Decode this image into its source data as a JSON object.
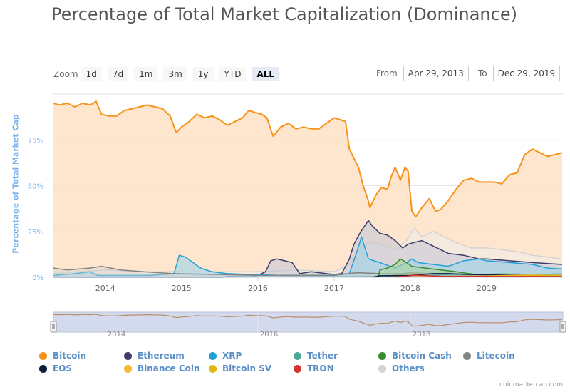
{
  "title": "Percentage of Total Market Capitalization (Dominance)",
  "zoom": {
    "label": "Zoom",
    "buttons": [
      "1d",
      "7d",
      "1m",
      "3m",
      "1y",
      "YTD",
      "ALL"
    ],
    "active": "ALL"
  },
  "range": {
    "from_label": "From",
    "from_value": "Apr 29, 2013",
    "to_label": "To",
    "to_value": "Dec 29, 2019"
  },
  "credit": "coinmarketcap.com",
  "chart_data": {
    "type": "area",
    "ylabel": "Percentage of Total Market Cap",
    "ylim": [
      0,
      100
    ],
    "xlim": [
      2013.32,
      2020.0
    ],
    "y_ticks": [
      {
        "value": 0,
        "label": "0%"
      },
      {
        "value": 25,
        "label": "25%"
      },
      {
        "value": 50,
        "label": "50%"
      },
      {
        "value": 75,
        "label": "75%"
      }
    ],
    "x_ticks": [
      {
        "value": 2014,
        "label": "2014"
      },
      {
        "value": 2015,
        "label": "2015"
      },
      {
        "value": 2016,
        "label": "2016"
      },
      {
        "value": 2017,
        "label": "2017"
      },
      {
        "value": 2018,
        "label": "2018"
      },
      {
        "value": 2019,
        "label": "2019"
      }
    ],
    "navigator_ticks": [
      {
        "value": 2014,
        "label": "2014"
      },
      {
        "value": 2016,
        "label": "2016"
      },
      {
        "value": 2018,
        "label": "2018"
      }
    ],
    "legend_placement": "bottom",
    "series": [
      {
        "name": "Bitcoin",
        "color": "#f7931a",
        "fill": "#fde0c0",
        "fill_opacity": 0.8,
        "points": [
          [
            2013.32,
            95
          ],
          [
            2013.4,
            94
          ],
          [
            2013.5,
            95
          ],
          [
            2013.6,
            93
          ],
          [
            2013.7,
            95
          ],
          [
            2013.8,
            94
          ],
          [
            2013.88,
            96
          ],
          [
            2013.95,
            89
          ],
          [
            2014.05,
            88
          ],
          [
            2014.15,
            88
          ],
          [
            2014.25,
            91
          ],
          [
            2014.35,
            92
          ],
          [
            2014.45,
            93
          ],
          [
            2014.55,
            94
          ],
          [
            2014.65,
            93
          ],
          [
            2014.75,
            92
          ],
          [
            2014.85,
            88
          ],
          [
            2014.93,
            79
          ],
          [
            2015.0,
            82
          ],
          [
            2015.1,
            85
          ],
          [
            2015.2,
            89
          ],
          [
            2015.3,
            87
          ],
          [
            2015.4,
            88
          ],
          [
            2015.5,
            86
          ],
          [
            2015.6,
            83
          ],
          [
            2015.7,
            85
          ],
          [
            2015.8,
            87
          ],
          [
            2015.88,
            91
          ],
          [
            2015.96,
            90
          ],
          [
            2016.05,
            89
          ],
          [
            2016.12,
            87
          ],
          [
            2016.2,
            77
          ],
          [
            2016.3,
            82
          ],
          [
            2016.4,
            84
          ],
          [
            2016.5,
            81
          ],
          [
            2016.6,
            82
          ],
          [
            2016.7,
            81
          ],
          [
            2016.8,
            81
          ],
          [
            2016.9,
            84
          ],
          [
            2017.0,
            87
          ],
          [
            2017.08,
            86
          ],
          [
            2017.15,
            85
          ],
          [
            2017.2,
            70
          ],
          [
            2017.26,
            65
          ],
          [
            2017.32,
            60
          ],
          [
            2017.38,
            50
          ],
          [
            2017.44,
            43
          ],
          [
            2017.47,
            38
          ],
          [
            2017.55,
            45
          ],
          [
            2017.62,
            49
          ],
          [
            2017.7,
            48
          ],
          [
            2017.75,
            55
          ],
          [
            2017.8,
            60
          ],
          [
            2017.87,
            53
          ],
          [
            2017.93,
            60
          ],
          [
            2017.97,
            58
          ],
          [
            2018.02,
            36
          ],
          [
            2018.07,
            33
          ],
          [
            2018.15,
            38
          ],
          [
            2018.25,
            43
          ],
          [
            2018.33,
            36
          ],
          [
            2018.4,
            37
          ],
          [
            2018.5,
            42
          ],
          [
            2018.6,
            48
          ],
          [
            2018.7,
            53
          ],
          [
            2018.8,
            54
          ],
          [
            2018.9,
            52
          ],
          [
            2019.0,
            52
          ],
          [
            2019.1,
            52
          ],
          [
            2019.2,
            51
          ],
          [
            2019.3,
            56
          ],
          [
            2019.4,
            57
          ],
          [
            2019.5,
            67
          ],
          [
            2019.6,
            70
          ],
          [
            2019.7,
            68
          ],
          [
            2019.8,
            66
          ],
          [
            2019.9,
            67
          ],
          [
            2019.99,
            68
          ]
        ]
      },
      {
        "name": "Others",
        "color": "#d3d3d3",
        "fill": "#eeeeee",
        "fill_opacity": 0.5,
        "points": [
          [
            2013.32,
            2
          ],
          [
            2014.0,
            4
          ],
          [
            2014.5,
            3
          ],
          [
            2015.0,
            3
          ],
          [
            2015.5,
            3
          ],
          [
            2016.0,
            3
          ],
          [
            2016.5,
            4
          ],
          [
            2017.0,
            3
          ],
          [
            2017.2,
            7
          ],
          [
            2017.3,
            13
          ],
          [
            2017.45,
            19
          ],
          [
            2017.6,
            18
          ],
          [
            2017.8,
            15
          ],
          [
            2017.95,
            20
          ],
          [
            2018.05,
            27
          ],
          [
            2018.15,
            22
          ],
          [
            2018.3,
            25
          ],
          [
            2018.45,
            22
          ],
          [
            2018.6,
            19
          ],
          [
            2018.8,
            16
          ],
          [
            2019.0,
            16
          ],
          [
            2019.2,
            15
          ],
          [
            2019.4,
            14
          ],
          [
            2019.6,
            12
          ],
          [
            2019.8,
            11
          ],
          [
            2019.99,
            10
          ]
        ]
      },
      {
        "name": "Ethereum",
        "color": "#3c3c6b",
        "fill": "#c7c7d6",
        "fill_opacity": 0.6,
        "points": [
          [
            2013.32,
            0
          ],
          [
            2015.55,
            0
          ],
          [
            2015.6,
            0.5
          ],
          [
            2015.9,
            0.3
          ],
          [
            2016.0,
            1
          ],
          [
            2016.1,
            3
          ],
          [
            2016.17,
            9
          ],
          [
            2016.25,
            10
          ],
          [
            2016.35,
            9
          ],
          [
            2016.45,
            8
          ],
          [
            2016.55,
            2
          ],
          [
            2016.7,
            3
          ],
          [
            2016.9,
            2
          ],
          [
            2017.0,
            1.5
          ],
          [
            2017.1,
            2
          ],
          [
            2017.2,
            10
          ],
          [
            2017.26,
            18
          ],
          [
            2017.35,
            25
          ],
          [
            2017.45,
            31
          ],
          [
            2017.5,
            28
          ],
          [
            2017.6,
            24
          ],
          [
            2017.7,
            23
          ],
          [
            2017.8,
            20
          ],
          [
            2017.9,
            16
          ],
          [
            2017.97,
            18
          ],
          [
            2018.05,
            19
          ],
          [
            2018.15,
            20
          ],
          [
            2018.3,
            17
          ],
          [
            2018.5,
            13
          ],
          [
            2018.7,
            12
          ],
          [
            2018.9,
            10
          ],
          [
            2019.0,
            10
          ],
          [
            2019.3,
            9
          ],
          [
            2019.6,
            8
          ],
          [
            2019.8,
            7.5
          ],
          [
            2019.99,
            7
          ]
        ]
      },
      {
        "name": "XRP",
        "color": "#23a1d6",
        "fill": "#9fd3ea",
        "fill_opacity": 0.6,
        "points": [
          [
            2013.32,
            1
          ],
          [
            2013.6,
            2
          ],
          [
            2013.8,
            3
          ],
          [
            2013.9,
            1
          ],
          [
            2014.2,
            1
          ],
          [
            2014.6,
            1
          ],
          [
            2014.9,
            2
          ],
          [
            2014.97,
            12
          ],
          [
            2015.05,
            11
          ],
          [
            2015.15,
            8
          ],
          [
            2015.25,
            5
          ],
          [
            2015.4,
            3
          ],
          [
            2015.6,
            2
          ],
          [
            2015.9,
            1.5
          ],
          [
            2016.3,
            1
          ],
          [
            2016.9,
            1
          ],
          [
            2017.2,
            2
          ],
          [
            2017.3,
            14
          ],
          [
            2017.36,
            22
          ],
          [
            2017.45,
            10
          ],
          [
            2017.6,
            8
          ],
          [
            2017.8,
            5
          ],
          [
            2017.95,
            8
          ],
          [
            2018.02,
            10
          ],
          [
            2018.1,
            8
          ],
          [
            2018.3,
            7
          ],
          [
            2018.5,
            6
          ],
          [
            2018.7,
            9
          ],
          [
            2018.9,
            10
          ],
          [
            2019.0,
            9
          ],
          [
            2019.3,
            8
          ],
          [
            2019.6,
            7
          ],
          [
            2019.8,
            5
          ],
          [
            2019.99,
            4.5
          ]
        ]
      },
      {
        "name": "Litecoin",
        "color": "#838383",
        "fill": "#d0d0d0",
        "fill_opacity": 0.4,
        "points": [
          [
            2013.32,
            5
          ],
          [
            2013.5,
            4
          ],
          [
            2013.8,
            5
          ],
          [
            2013.95,
            6
          ],
          [
            2014.2,
            4
          ],
          [
            2014.5,
            3
          ],
          [
            2014.9,
            2
          ],
          [
            2015.5,
            1.5
          ],
          [
            2016.0,
            1
          ],
          [
            2016.6,
            1
          ],
          [
            2017.0,
            1
          ],
          [
            2017.3,
            2.5
          ],
          [
            2017.6,
            2
          ],
          [
            2017.9,
            2
          ],
          [
            2018.0,
            2.5
          ],
          [
            2018.5,
            1.5
          ],
          [
            2019.0,
            1
          ],
          [
            2019.4,
            1.8
          ],
          [
            2019.7,
            1
          ],
          [
            2019.99,
            0.8
          ]
        ]
      },
      {
        "name": "Bitcoin Cash",
        "color": "#3b8c2f",
        "fill": "#a9d3a2",
        "fill_opacity": 0.6,
        "points": [
          [
            2017.58,
            0
          ],
          [
            2017.6,
            4
          ],
          [
            2017.7,
            5
          ],
          [
            2017.8,
            7
          ],
          [
            2017.87,
            10
          ],
          [
            2017.95,
            8
          ],
          [
            2018.02,
            6
          ],
          [
            2018.2,
            5
          ],
          [
            2018.4,
            4
          ],
          [
            2018.6,
            3
          ],
          [
            2018.85,
            1.5
          ],
          [
            2019.0,
            1
          ],
          [
            2019.4,
            1.5
          ],
          [
            2019.99,
            1
          ]
        ]
      },
      {
        "name": "Tether",
        "color": "#4ea996",
        "fill": "#a6d6cb",
        "fill_opacity": 0.5,
        "points": [
          [
            2015.3,
            0
          ],
          [
            2017.0,
            0.2
          ],
          [
            2017.5,
            0.3
          ],
          [
            2018.0,
            0.5
          ],
          [
            2018.5,
            1.5
          ],
          [
            2018.9,
            1.5
          ],
          [
            2019.2,
            1.8
          ],
          [
            2019.6,
            1.5
          ],
          [
            2019.99,
            1.8
          ]
        ]
      },
      {
        "name": "EOS",
        "color": "#0c1c3b",
        "fill": "#8a93a3",
        "fill_opacity": 0.4,
        "points": [
          [
            2017.5,
            0
          ],
          [
            2017.6,
            0.8
          ],
          [
            2018.0,
            1
          ],
          [
            2018.3,
            2
          ],
          [
            2018.5,
            2
          ],
          [
            2018.8,
            1.5
          ],
          [
            2019.2,
            1.2
          ],
          [
            2019.6,
            1
          ],
          [
            2019.99,
            0.6
          ]
        ]
      },
      {
        "name": "Binance Coin",
        "color": "#f3ba2f",
        "fill": "#f8dc97",
        "fill_opacity": 0.4,
        "points": [
          [
            2017.8,
            0
          ],
          [
            2018.1,
            0.3
          ],
          [
            2018.8,
            0.6
          ],
          [
            2019.3,
            1
          ],
          [
            2019.6,
            1.2
          ],
          [
            2019.99,
            1
          ]
        ]
      },
      {
        "name": "Bitcoin SV",
        "color": "#e4b70f",
        "fill": "#f1da87",
        "fill_opacity": 0.4,
        "points": [
          [
            2018.87,
            0
          ],
          [
            2018.9,
            0.5
          ],
          [
            2019.3,
            0.6
          ],
          [
            2019.6,
            0.8
          ],
          [
            2019.99,
            1
          ]
        ]
      },
      {
        "name": "TRON",
        "color": "#d0352f",
        "fill": "#e8a09c",
        "fill_opacity": 0.4,
        "points": [
          [
            2017.7,
            0
          ],
          [
            2017.95,
            0.6
          ],
          [
            2018.05,
            1.2
          ],
          [
            2018.4,
            0.5
          ],
          [
            2019.0,
            0.5
          ],
          [
            2019.99,
            0.4
          ]
        ]
      }
    ]
  }
}
